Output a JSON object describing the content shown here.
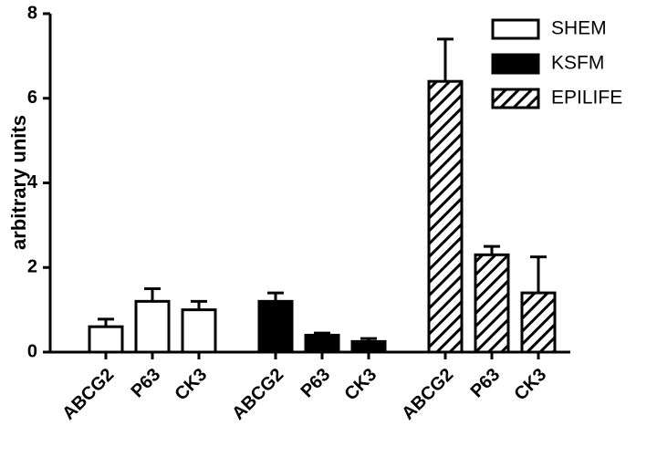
{
  "chart_data": {
    "type": "bar",
    "y_label": "arbitrary units",
    "categories": [
      "ABCG2",
      "P63",
      "CK3"
    ],
    "series": [
      {
        "name": "SHEM",
        "color": "#ffffff",
        "values": [
          0.6,
          1.2,
          1.0
        ],
        "errors": [
          0.18,
          0.3,
          0.2
        ]
      },
      {
        "name": "KSFM",
        "color": "#000000",
        "values": [
          1.2,
          0.4,
          0.25
        ],
        "errors": [
          0.2,
          0.05,
          0.07
        ]
      },
      {
        "name": "EPILIFE",
        "color": "#ffffff",
        "pattern": "hatch",
        "values": [
          6.4,
          2.3,
          1.4
        ],
        "errors": [
          1.0,
          0.2,
          0.85
        ]
      }
    ],
    "ylim": [
      0,
      8
    ],
    "yticks": [
      0,
      2,
      4,
      6,
      8
    ],
    "legend": "top-right"
  }
}
